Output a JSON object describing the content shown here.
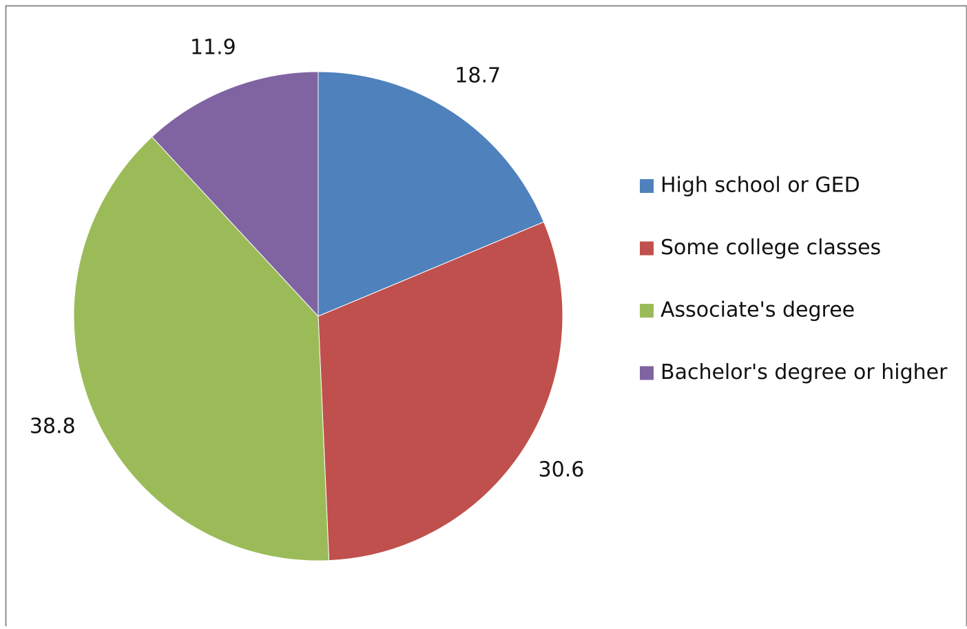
{
  "chart_data": {
    "type": "pie",
    "categories": [
      "High school or GED",
      "Some college classes",
      "Associate's degree",
      "Bachelor's degree or higher"
    ],
    "values": [
      18.7,
      30.6,
      38.8,
      11.9
    ],
    "colors": [
      "#4f81bd",
      "#c0504d",
      "#9bbb59",
      "#8064a2"
    ],
    "legend": "right"
  }
}
